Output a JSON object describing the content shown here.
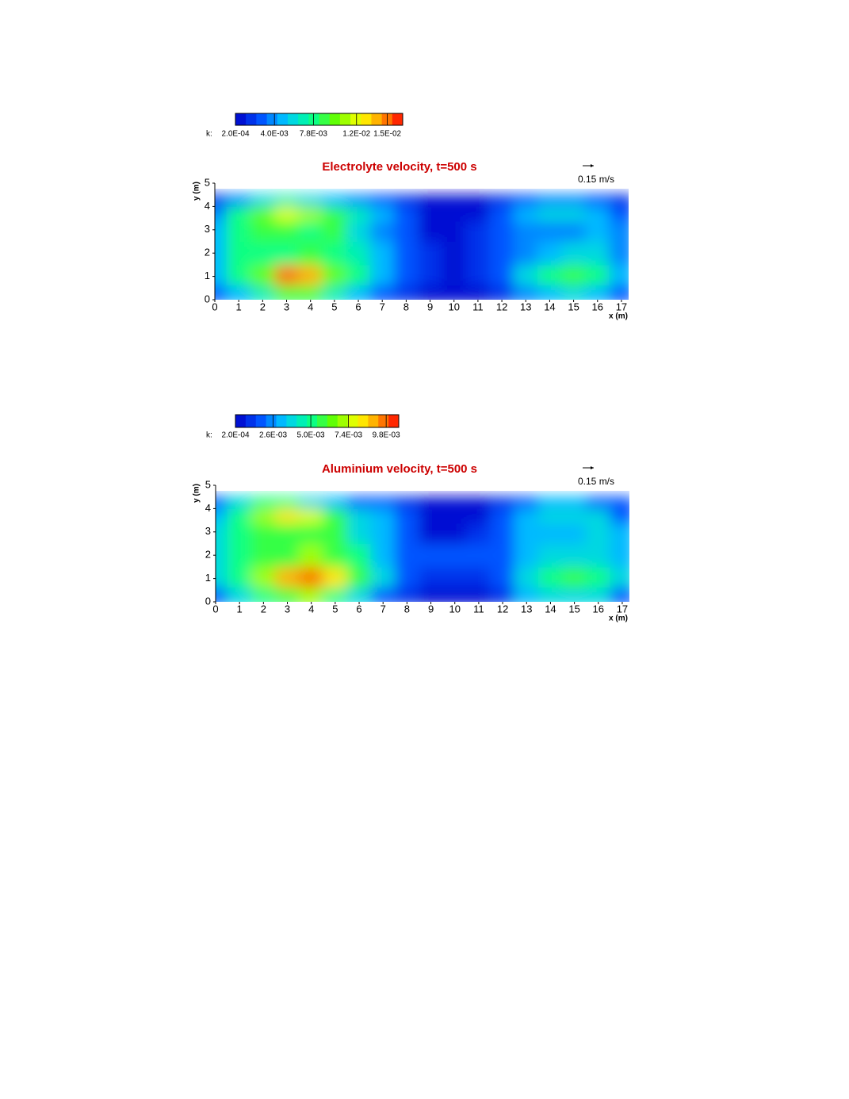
{
  "chart_data": [
    {
      "type": "contour",
      "title": "Electrolyte velocity, t=500 s",
      "colorbar_label": "k:",
      "levels": 16,
      "zlim": [
        0.0002,
        0.0165
      ],
      "zticks": [
        {
          "value": 0.0002,
          "label": "2.0E-04"
        },
        {
          "value": 0.004,
          "label": "4.0E-03"
        },
        {
          "value": 0.0078,
          "label": "7.8E-03"
        },
        {
          "value": 0.012,
          "label": "1.2E-02"
        },
        {
          "value": 0.015,
          "label": "1.5E-02"
        }
      ],
      "vector_label": "0.15 m/s",
      "x_label": "x (m)",
      "y_label": "y (m)",
      "xlim": [
        0,
        17.3
      ],
      "ylim": [
        0,
        5
      ],
      "xticks": [
        0,
        1,
        2,
        3,
        4,
        5,
        6,
        7,
        8,
        9,
        10,
        11,
        12,
        13,
        14,
        15,
        16,
        17
      ],
      "yticks": [
        0,
        1,
        2,
        3,
        4,
        5
      ],
      "x": [
        0,
        1,
        2,
        3,
        4,
        5,
        6,
        7,
        8,
        9,
        10,
        11,
        12,
        13,
        14,
        15,
        16,
        17
      ],
      "y": [
        0.25,
        1,
        2,
        3,
        3.75,
        4.25
      ],
      "z": [
        [
          0.003,
          0.005,
          0.007,
          0.009,
          0.009,
          0.007,
          0.005,
          0.003,
          0.002,
          0.001,
          0.0008,
          0.001,
          0.002,
          0.004,
          0.005,
          0.006,
          0.005,
          0.003
        ],
        [
          0.005,
          0.008,
          0.01,
          0.015,
          0.014,
          0.01,
          0.008,
          0.005,
          0.003,
          0.0015,
          0.001,
          0.0015,
          0.003,
          0.006,
          0.008,
          0.009,
          0.008,
          0.005
        ],
        [
          0.005,
          0.008,
          0.008,
          0.008,
          0.009,
          0.008,
          0.007,
          0.005,
          0.003,
          0.0015,
          0.001,
          0.0015,
          0.003,
          0.004,
          0.005,
          0.006,
          0.006,
          0.004
        ],
        [
          0.005,
          0.008,
          0.009,
          0.009,
          0.008,
          0.009,
          0.006,
          0.004,
          0.003,
          0.001,
          0.001,
          0.0015,
          0.003,
          0.004,
          0.004,
          0.004,
          0.005,
          0.004
        ],
        [
          0.004,
          0.008,
          0.01,
          0.012,
          0.011,
          0.009,
          0.007,
          0.005,
          0.003,
          0.001,
          0.0005,
          0.001,
          0.003,
          0.005,
          0.006,
          0.006,
          0.005,
          0.003
        ],
        [
          0.002,
          0.004,
          0.006,
          0.007,
          0.006,
          0.005,
          0.004,
          0.003,
          0.002,
          0.0005,
          0.0003,
          0.0005,
          0.002,
          0.003,
          0.004,
          0.004,
          0.003,
          0.002
        ]
      ]
    },
    {
      "type": "contour",
      "title": "Aluminium velocity, t=500 s",
      "colorbar_label": "k:",
      "levels": 16,
      "zlim": [
        0.0002,
        0.0106
      ],
      "zticks": [
        {
          "value": 0.0002,
          "label": "2.0E-04"
        },
        {
          "value": 0.0026,
          "label": "2.6E-03"
        },
        {
          "value": 0.005,
          "label": "5.0E-03"
        },
        {
          "value": 0.0074,
          "label": "7.4E-03"
        },
        {
          "value": 0.0098,
          "label": "9.8E-03"
        }
      ],
      "vector_label": "0.15 m/s",
      "x_label": "x (m)",
      "y_label": "y (m)",
      "xlim": [
        0,
        17.3
      ],
      "ylim": [
        0,
        5
      ],
      "xticks": [
        0,
        1,
        2,
        3,
        4,
        5,
        6,
        7,
        8,
        9,
        10,
        11,
        12,
        13,
        14,
        15,
        16,
        17
      ],
      "yticks": [
        0,
        1,
        2,
        3,
        4,
        5
      ],
      "x": [
        0,
        1,
        2,
        3,
        4,
        5,
        6,
        7,
        8,
        9,
        10,
        11,
        12,
        13,
        14,
        15,
        16,
        17
      ],
      "y": [
        0.25,
        1,
        2,
        3,
        3.75,
        4.25
      ],
      "z": [
        [
          0.002,
          0.004,
          0.005,
          0.006,
          0.007,
          0.005,
          0.004,
          0.002,
          0.0012,
          0.0008,
          0.0006,
          0.0008,
          0.0012,
          0.003,
          0.004,
          0.004,
          0.0035,
          0.002
        ],
        [
          0.004,
          0.005,
          0.007,
          0.009,
          0.0098,
          0.008,
          0.006,
          0.004,
          0.002,
          0.0012,
          0.001,
          0.0012,
          0.002,
          0.004,
          0.005,
          0.0055,
          0.005,
          0.004
        ],
        [
          0.004,
          0.005,
          0.006,
          0.006,
          0.007,
          0.006,
          0.005,
          0.003,
          0.002,
          0.0015,
          0.0015,
          0.0015,
          0.002,
          0.003,
          0.0035,
          0.004,
          0.004,
          0.003
        ],
        [
          0.004,
          0.005,
          0.006,
          0.006,
          0.006,
          0.006,
          0.004,
          0.003,
          0.002,
          0.0008,
          0.0008,
          0.001,
          0.002,
          0.003,
          0.003,
          0.003,
          0.0035,
          0.003
        ],
        [
          0.003,
          0.005,
          0.007,
          0.008,
          0.0075,
          0.006,
          0.004,
          0.003,
          0.002,
          0.0005,
          0.0003,
          0.0005,
          0.002,
          0.003,
          0.004,
          0.004,
          0.0035,
          0.002
        ],
        [
          0.002,
          0.004,
          0.005,
          0.005,
          0.004,
          0.003,
          0.002,
          0.0015,
          0.001,
          0.0003,
          0.0002,
          0.0003,
          0.001,
          0.002,
          0.003,
          0.003,
          0.002,
          0.0015
        ]
      ]
    }
  ]
}
